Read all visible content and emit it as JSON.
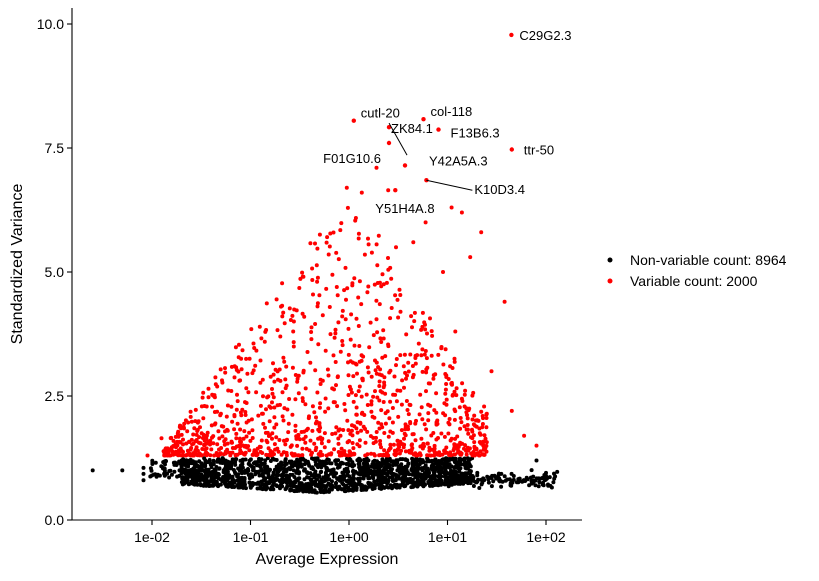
{
  "chart_data": {
    "type": "scatter",
    "title": "",
    "xlabel": "Average Expression",
    "ylabel": "Standardized Variance",
    "x_scale": "log10",
    "xlim": [
      0.0015,
      200
    ],
    "ylim": [
      0,
      10.3
    ],
    "x_ticks": [
      {
        "value": 0.01,
        "label": "1e-02"
      },
      {
        "value": 0.1,
        "label": "1e-01"
      },
      {
        "value": 1,
        "label": "1e+00"
      },
      {
        "value": 10,
        "label": "1e+01"
      },
      {
        "value": 100,
        "label": "1e+02"
      }
    ],
    "y_ticks": [
      {
        "value": 0,
        "label": "0.0"
      },
      {
        "value": 2.5,
        "label": "2.5"
      },
      {
        "value": 5,
        "label": "5.0"
      },
      {
        "value": 7.5,
        "label": "7.5"
      },
      {
        "value": 10,
        "label": "10.0"
      }
    ],
    "grid": false,
    "legend_position": "right",
    "series": [
      {
        "name": "Non-variable count: 8964",
        "color": "#000000",
        "count": 8964
      },
      {
        "name": "Variable count: 2000",
        "color": "#ff0000",
        "count": 2000
      }
    ],
    "highlighted_points": [
      {
        "label": "C29G2.3",
        "x": 44.5,
        "y": 9.78
      },
      {
        "label": "cutl-20",
        "x": 1.12,
        "y": 8.05
      },
      {
        "label": "col-118",
        "x": 5.7,
        "y": 8.08
      },
      {
        "label": "F13B6.3",
        "x": 8.1,
        "y": 7.87
      },
      {
        "label": "ZK84.1",
        "x": 2.55,
        "y": 7.92
      },
      {
        "label": "ttr-50",
        "x": 45.0,
        "y": 7.47
      },
      {
        "label": "F01G10.6",
        "x": 2.55,
        "y": 7.6
      },
      {
        "label": "Y42A5A.3",
        "x": 3.7,
        "y": 7.15
      },
      {
        "label": "K10D3.4",
        "x": 6.1,
        "y": 6.85
      },
      {
        "label": "Y51H4A.8",
        "x": 2.95,
        "y": 6.65
      }
    ],
    "extra_variable_points": [
      {
        "x": 1.9,
        "y": 7.1
      },
      {
        "x": 0.95,
        "y": 6.7
      },
      {
        "x": 1.35,
        "y": 6.6
      },
      {
        "x": 2.5,
        "y": 6.65
      },
      {
        "x": 6.0,
        "y": 6.0
      },
      {
        "x": 11.0,
        "y": 6.3
      },
      {
        "x": 14.0,
        "y": 6.2
      },
      {
        "x": 22.0,
        "y": 5.8
      },
      {
        "x": 17.0,
        "y": 5.3
      },
      {
        "x": 38.0,
        "y": 4.4
      },
      {
        "x": 12.0,
        "y": 3.8
      },
      {
        "x": 28.0,
        "y": 3.0
      },
      {
        "x": 45.0,
        "y": 2.2
      },
      {
        "x": 80.0,
        "y": 1.5
      },
      {
        "x": 60.0,
        "y": 1.7
      },
      {
        "x": 0.0125,
        "y": 1.65
      },
      {
        "x": 0.009,
        "y": 1.3
      },
      {
        "x": 9.0,
        "y": 5.0
      },
      {
        "x": 4.5,
        "y": 5.6
      },
      {
        "x": 3.0,
        "y": 5.5
      }
    ],
    "extra_nonvariable_points": [
      {
        "x": 0.0025,
        "y": 1.0
      },
      {
        "x": 0.005,
        "y": 1.0
      },
      {
        "x": 0.0082,
        "y": 1.05
      },
      {
        "x": 0.0082,
        "y": 0.93
      },
      {
        "x": 0.0082,
        "y": 0.8
      },
      {
        "x": 100,
        "y": 0.95
      },
      {
        "x": 130,
        "y": 0.97
      },
      {
        "x": 80,
        "y": 1.2
      }
    ]
  }
}
